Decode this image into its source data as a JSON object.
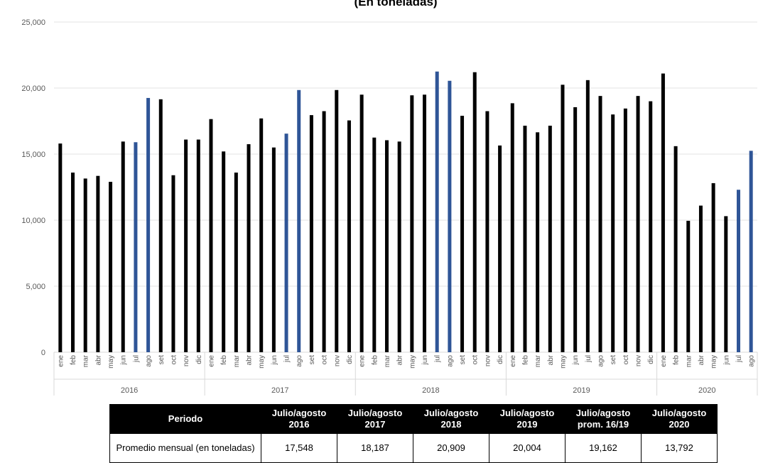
{
  "chart_data": {
    "type": "bar",
    "title": "(En toneladas)",
    "ylim": [
      0,
      25000
    ],
    "yticks": [
      "0",
      "5,000",
      "10,000",
      "15,000",
      "20,000",
      "25,000"
    ],
    "grid": true,
    "legend": "none",
    "colors": {
      "default": "#000000",
      "highlight": "#2F5597"
    },
    "years": [
      "2016",
      "2017",
      "2018",
      "2019",
      "2020"
    ],
    "categories": [
      {
        "year": "2016",
        "month": "ene",
        "value": 15800,
        "highlight": false
      },
      {
        "year": "2016",
        "month": "feb",
        "value": 13600,
        "highlight": false
      },
      {
        "year": "2016",
        "month": "mar",
        "value": 13150,
        "highlight": false
      },
      {
        "year": "2016",
        "month": "abr",
        "value": 13350,
        "highlight": false
      },
      {
        "year": "2016",
        "month": "may",
        "value": 12900,
        "highlight": false
      },
      {
        "year": "2016",
        "month": "jun",
        "value": 15950,
        "highlight": false
      },
      {
        "year": "2016",
        "month": "jul",
        "value": 15900,
        "highlight": true
      },
      {
        "year": "2016",
        "month": "ago",
        "value": 19250,
        "highlight": true
      },
      {
        "year": "2016",
        "month": "set",
        "value": 19150,
        "highlight": false
      },
      {
        "year": "2016",
        "month": "oct",
        "value": 13400,
        "highlight": false
      },
      {
        "year": "2016",
        "month": "nov",
        "value": 16100,
        "highlight": false
      },
      {
        "year": "2016",
        "month": "dic",
        "value": 16100,
        "highlight": false
      },
      {
        "year": "2017",
        "month": "ene",
        "value": 17650,
        "highlight": false
      },
      {
        "year": "2017",
        "month": "feb",
        "value": 15200,
        "highlight": false
      },
      {
        "year": "2017",
        "month": "mar",
        "value": 13600,
        "highlight": false
      },
      {
        "year": "2017",
        "month": "abr",
        "value": 15750,
        "highlight": false
      },
      {
        "year": "2017",
        "month": "may",
        "value": 17700,
        "highlight": false
      },
      {
        "year": "2017",
        "month": "jun",
        "value": 15500,
        "highlight": false
      },
      {
        "year": "2017",
        "month": "jul",
        "value": 16550,
        "highlight": true
      },
      {
        "year": "2017",
        "month": "ago",
        "value": 19850,
        "highlight": true
      },
      {
        "year": "2017",
        "month": "set",
        "value": 17950,
        "highlight": false
      },
      {
        "year": "2017",
        "month": "oct",
        "value": 18250,
        "highlight": false
      },
      {
        "year": "2017",
        "month": "nov",
        "value": 19850,
        "highlight": false
      },
      {
        "year": "2017",
        "month": "dic",
        "value": 17550,
        "highlight": false
      },
      {
        "year": "2018",
        "month": "ene",
        "value": 19500,
        "highlight": false
      },
      {
        "year": "2018",
        "month": "feb",
        "value": 16250,
        "highlight": false
      },
      {
        "year": "2018",
        "month": "mar",
        "value": 16050,
        "highlight": false
      },
      {
        "year": "2018",
        "month": "abr",
        "value": 15950,
        "highlight": false
      },
      {
        "year": "2018",
        "month": "may",
        "value": 19450,
        "highlight": false
      },
      {
        "year": "2018",
        "month": "jun",
        "value": 19500,
        "highlight": false
      },
      {
        "year": "2018",
        "month": "jul",
        "value": 21250,
        "highlight": true
      },
      {
        "year": "2018",
        "month": "ago",
        "value": 20550,
        "highlight": true
      },
      {
        "year": "2018",
        "month": "set",
        "value": 17900,
        "highlight": false
      },
      {
        "year": "2018",
        "month": "oct",
        "value": 21200,
        "highlight": false
      },
      {
        "year": "2018",
        "month": "nov",
        "value": 18250,
        "highlight": false
      },
      {
        "year": "2018",
        "month": "dic",
        "value": 15650,
        "highlight": false
      },
      {
        "year": "2019",
        "month": "ene",
        "value": 18850,
        "highlight": false
      },
      {
        "year": "2019",
        "month": "feb",
        "value": 17150,
        "highlight": false
      },
      {
        "year": "2019",
        "month": "mar",
        "value": 16650,
        "highlight": false
      },
      {
        "year": "2019",
        "month": "abr",
        "value": 17150,
        "highlight": false
      },
      {
        "year": "2019",
        "month": "may",
        "value": 20250,
        "highlight": false
      },
      {
        "year": "2019",
        "month": "jun",
        "value": 18550,
        "highlight": false
      },
      {
        "year": "2019",
        "month": "jul",
        "value": 20600,
        "highlight": false
      },
      {
        "year": "2019",
        "month": "ago",
        "value": 19400,
        "highlight": false
      },
      {
        "year": "2019",
        "month": "set",
        "value": 18000,
        "highlight": false
      },
      {
        "year": "2019",
        "month": "oct",
        "value": 18450,
        "highlight": false
      },
      {
        "year": "2019",
        "month": "nov",
        "value": 19400,
        "highlight": false
      },
      {
        "year": "2019",
        "month": "dic",
        "value": 19000,
        "highlight": false
      },
      {
        "year": "2020",
        "month": "ene",
        "value": 21100,
        "highlight": false
      },
      {
        "year": "2020",
        "month": "feb",
        "value": 15600,
        "highlight": false
      },
      {
        "year": "2020",
        "month": "mar",
        "value": 9950,
        "highlight": false
      },
      {
        "year": "2020",
        "month": "abr",
        "value": 11100,
        "highlight": false
      },
      {
        "year": "2020",
        "month": "may",
        "value": 12800,
        "highlight": false
      },
      {
        "year": "2020",
        "month": "jun",
        "value": 10300,
        "highlight": false
      },
      {
        "year": "2020",
        "month": "jul",
        "value": 12300,
        "highlight": true
      },
      {
        "year": "2020",
        "month": "ago",
        "value": 15250,
        "highlight": true
      }
    ]
  },
  "table": {
    "header_first": "Periodo",
    "headers": [
      {
        "line1": "Julio/agosto",
        "line2": "2016"
      },
      {
        "line1": "Julio/agosto",
        "line2": "2017"
      },
      {
        "line1": "Julio/agosto",
        "line2": "2018"
      },
      {
        "line1": "Julio/agosto",
        "line2": "2019"
      },
      {
        "line1": "Julio/agosto",
        "line2": "prom. 16/19"
      },
      {
        "line1": "Julio/agosto",
        "line2": "2020"
      }
    ],
    "row_label": "Promedio mensual (en toneladas)",
    "values": [
      "17,548",
      "18,187",
      "20,909",
      "20,004",
      "19,162",
      "13,792"
    ]
  }
}
